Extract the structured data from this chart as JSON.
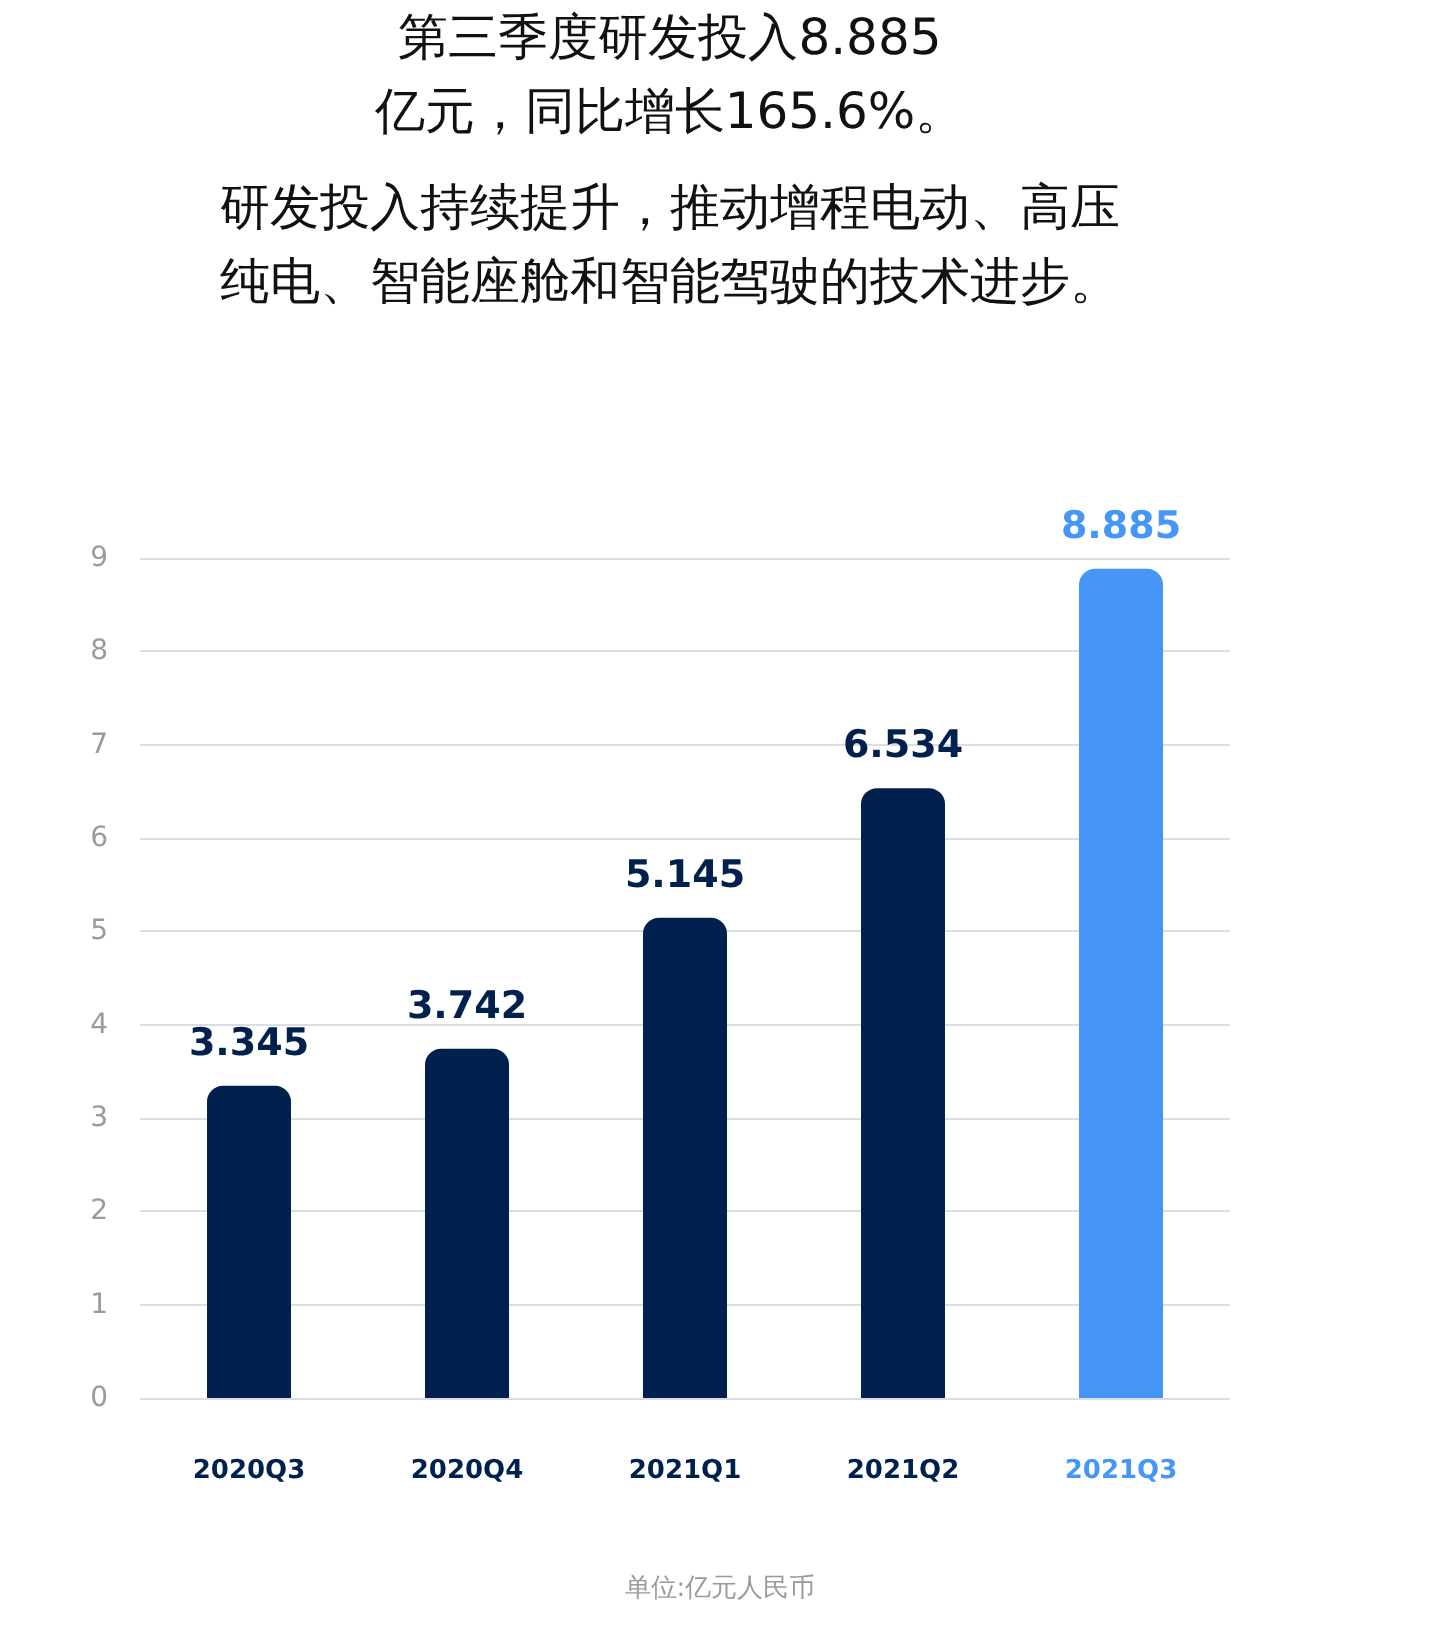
{
  "chart_data": {
    "type": "bar",
    "title": "第三季度研发投入8.885亿元，同比增长165.6%。",
    "subtitle": "研发投入持续提升，推动增程电动、高压纯电、智能座舱和智能驾驶的技术进步。",
    "categories": [
      "2020Q3",
      "2020Q4",
      "2021Q1",
      "2021Q2",
      "2021Q3"
    ],
    "values": [
      3.345,
      3.742,
      5.145,
      6.534,
      8.885
    ],
    "colors": [
      "#00214d",
      "#00214d",
      "#00214d",
      "#00214d",
      "#4596f7"
    ],
    "ylim": [
      0,
      9
    ],
    "yticks": [
      0,
      1,
      2,
      3,
      4,
      5,
      6,
      7,
      8,
      9
    ],
    "grid": "y",
    "data_labels": true,
    "annotations": [
      "单位:亿元人民币"
    ]
  }
}
